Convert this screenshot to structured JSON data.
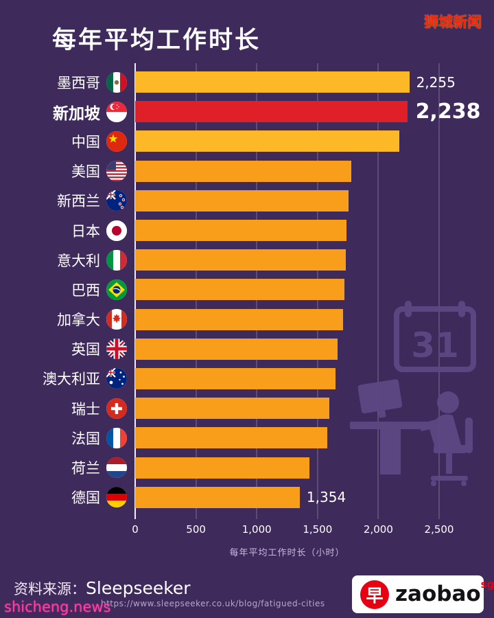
{
  "header": {
    "title": "每年平均工作时长",
    "badge": "狮城新闻"
  },
  "chart_data": {
    "type": "bar",
    "orientation": "horizontal",
    "title": "每年平均工作时长",
    "xlabel": "每年平均工作时长（小时）",
    "ylabel": "",
    "xlim": [
      0,
      2500
    ],
    "tick_values": [
      0,
      500,
      1000,
      1500,
      2000,
      2500
    ],
    "xticks": [
      "0",
      "500",
      "1,000",
      "1,500",
      "2,000",
      "2,500"
    ],
    "grid": true,
    "legend": "none",
    "categories": [
      "墨西哥",
      "新加坡",
      "中国",
      "美国",
      "新西兰",
      "日本",
      "意大利",
      "巴西",
      "加拿大",
      "英国",
      "澳大利亚",
      "瑞士",
      "法国",
      "荷兰",
      "德国"
    ],
    "values": [
      2255,
      2238,
      2174,
      1779,
      1753,
      1738,
      1730,
      1721,
      1710,
      1665,
      1647,
      1595,
      1580,
      1434,
      1354
    ],
    "rows": [
      {
        "label": "墨西哥",
        "flag": "mexico",
        "value": 2255,
        "value_label": "2,255",
        "color": "gold",
        "highlight": false
      },
      {
        "label": "新加坡",
        "flag": "singapore",
        "value": 2238,
        "value_label": "2,238",
        "color": "red",
        "highlight": true
      },
      {
        "label": "中国",
        "flag": "china",
        "value": 2174,
        "value_label": "",
        "color": "gold",
        "highlight": false
      },
      {
        "label": "美国",
        "flag": "usa",
        "value": 1779,
        "value_label": "",
        "color": "orange",
        "highlight": false
      },
      {
        "label": "新西兰",
        "flag": "new_zealand",
        "value": 1753,
        "value_label": "",
        "color": "orange",
        "highlight": false
      },
      {
        "label": "日本",
        "flag": "japan",
        "value": 1738,
        "value_label": "",
        "color": "orange",
        "highlight": false
      },
      {
        "label": "意大利",
        "flag": "italy",
        "value": 1730,
        "value_label": "",
        "color": "orange",
        "highlight": false
      },
      {
        "label": "巴西",
        "flag": "brazil",
        "value": 1721,
        "value_label": "",
        "color": "orange",
        "highlight": false
      },
      {
        "label": "加拿大",
        "flag": "canada",
        "value": 1710,
        "value_label": "",
        "color": "orange",
        "highlight": false
      },
      {
        "label": "英国",
        "flag": "uk",
        "value": 1665,
        "value_label": "",
        "color": "orange",
        "highlight": false
      },
      {
        "label": "澳大利亚",
        "flag": "australia",
        "value": 1647,
        "value_label": "",
        "color": "orange",
        "highlight": false
      },
      {
        "label": "瑞士",
        "flag": "switzerland",
        "value": 1595,
        "value_label": "",
        "color": "orange",
        "highlight": false
      },
      {
        "label": "法国",
        "flag": "france",
        "value": 1580,
        "value_label": "",
        "color": "orange",
        "highlight": false
      },
      {
        "label": "荷兰",
        "flag": "netherlands",
        "value": 1434,
        "value_label": "",
        "color": "orange",
        "highlight": false
      },
      {
        "label": "德国",
        "flag": "germany",
        "value": 1354,
        "value_label": "1,354",
        "color": "orange",
        "highlight": false
      }
    ],
    "watermark_icons": [
      "calendar-31",
      "worker-at-desk"
    ],
    "calendar_number": "31"
  },
  "footer": {
    "source_label": "资料来源：",
    "source_name": "Sleepseeker",
    "source_url": "https://www.sleepseeker.co.uk/blog/fatigued-cities",
    "site_watermark": "shicheng.news",
    "logo_char": "早",
    "logo_text": "zaobao",
    "logo_sup": "sg"
  },
  "colors": {
    "background": "#3f2a5c",
    "bar_gold": "#fcb826",
    "bar_orange": "#f89e1b",
    "bar_red": "#e02029",
    "grid": "rgba(255,255,255,0.32)",
    "badge_red": "#ff2000",
    "watermark_purple": "#5d4884",
    "magenta": "#ff3fa4",
    "logo_red": "#e60012"
  }
}
